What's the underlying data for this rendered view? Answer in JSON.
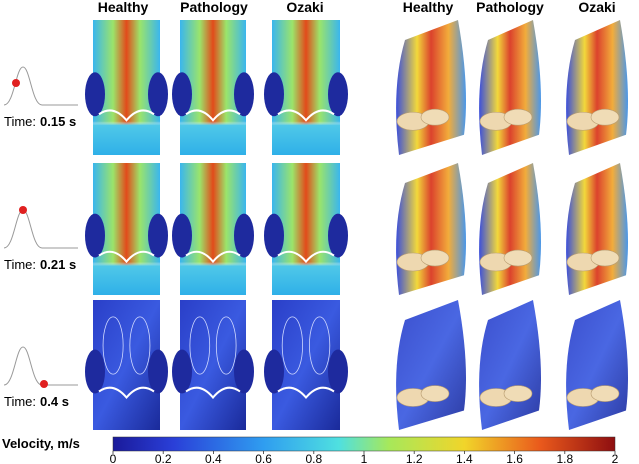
{
  "column_headers_left": [
    "Healthy",
    "Pathology",
    "Ozaki"
  ],
  "column_headers_right": [
    "Healthy",
    "Pathology",
    "Ozaki"
  ],
  "rows": [
    {
      "label": "Time:",
      "time": "0.15 s"
    },
    {
      "label": "Time:",
      "time": "0.21 s"
    },
    {
      "label": "Time:",
      "time": "0.4 s"
    }
  ],
  "colorbar": {
    "label": "Velocity, m/s",
    "range": [
      0,
      2
    ],
    "ticks": [
      0,
      0.2,
      0.4,
      0.6,
      0.8,
      1,
      1.2,
      1.4,
      1.6,
      1.8,
      2
    ]
  }
}
